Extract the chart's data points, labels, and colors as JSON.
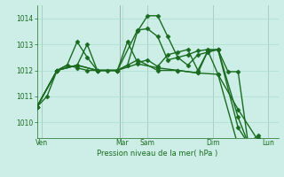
{
  "bg_color": "#cceee6",
  "grid_color": "#aaddcc",
  "line_color": "#1a6b20",
  "marker": "D",
  "markersize": 2.5,
  "linewidth": 1.0,
  "xlabel": "Pression niveau de la mer( hPa )",
  "ylim": [
    1009.4,
    1014.5
  ],
  "yticks": [
    1010,
    1011,
    1012,
    1013,
    1014
  ],
  "xlim": [
    0,
    24
  ],
  "day_labels": [
    "Ven",
    "Mar",
    "Sam",
    "Dim",
    "Lun"
  ],
  "day_positions": [
    0.5,
    8.5,
    11.0,
    17.5,
    23.0
  ],
  "vline_positions": [
    0.5,
    8.2,
    11.0,
    17.5,
    23.0
  ],
  "series": [
    {
      "x": [
        0,
        1,
        2,
        3,
        4,
        5,
        6,
        7,
        8,
        9,
        10,
        11,
        12,
        13,
        14,
        15,
        16,
        17,
        18,
        19,
        20,
        21,
        22,
        23
      ],
      "y": [
        1010.6,
        1011.0,
        1012.0,
        1012.2,
        1012.1,
        1012.0,
        1012.0,
        1012.0,
        1012.0,
        1012.2,
        1013.5,
        1014.1,
        1014.1,
        1013.3,
        1012.5,
        1012.2,
        1012.6,
        1012.7,
        1012.8,
        1011.95,
        1011.95,
        1009.2,
        1009.3,
        1009.2
      ]
    },
    {
      "x": [
        0,
        2,
        4,
        6,
        8,
        10,
        11,
        12,
        13,
        14,
        15,
        16,
        17,
        18,
        20,
        21,
        22,
        23
      ],
      "y": [
        1010.6,
        1012.0,
        1012.2,
        1012.0,
        1012.0,
        1013.55,
        1013.6,
        1013.3,
        1012.4,
        1012.5,
        1012.6,
        1012.75,
        1012.8,
        1012.8,
        1009.8,
        1009.2,
        1009.5,
        1008.85
      ]
    },
    {
      "x": [
        0,
        2,
        4,
        6,
        8,
        10,
        12,
        14,
        16,
        18,
        20,
        22,
        23
      ],
      "y": [
        1010.6,
        1012.0,
        1012.2,
        1012.0,
        1012.0,
        1012.4,
        1012.0,
        1012.0,
        1011.9,
        1011.85,
        1010.5,
        1009.3,
        1008.8
      ]
    },
    {
      "x": [
        0,
        2,
        3,
        4,
        5,
        6,
        8,
        9,
        10,
        11,
        12,
        13,
        14,
        15,
        16,
        17,
        18,
        20,
        21,
        22,
        23
      ],
      "y": [
        1010.6,
        1012.0,
        1012.2,
        1013.1,
        1012.5,
        1012.0,
        1012.0,
        1013.1,
        1012.3,
        1012.4,
        1012.15,
        1012.6,
        1012.7,
        1012.8,
        1012.0,
        1012.75,
        1012.8,
        1010.2,
        1009.2,
        1009.4,
        1009.0
      ]
    },
    {
      "x": [
        0,
        2,
        4,
        5,
        6,
        8,
        10,
        12,
        14,
        16,
        17,
        18,
        20,
        21,
        22,
        23
      ],
      "y": [
        1010.6,
        1012.0,
        1012.2,
        1013.0,
        1012.0,
        1012.0,
        1012.25,
        1012.1,
        1012.0,
        1011.9,
        1012.75,
        1011.85,
        1009.1,
        1008.95,
        1009.3,
        1008.75
      ]
    }
  ]
}
